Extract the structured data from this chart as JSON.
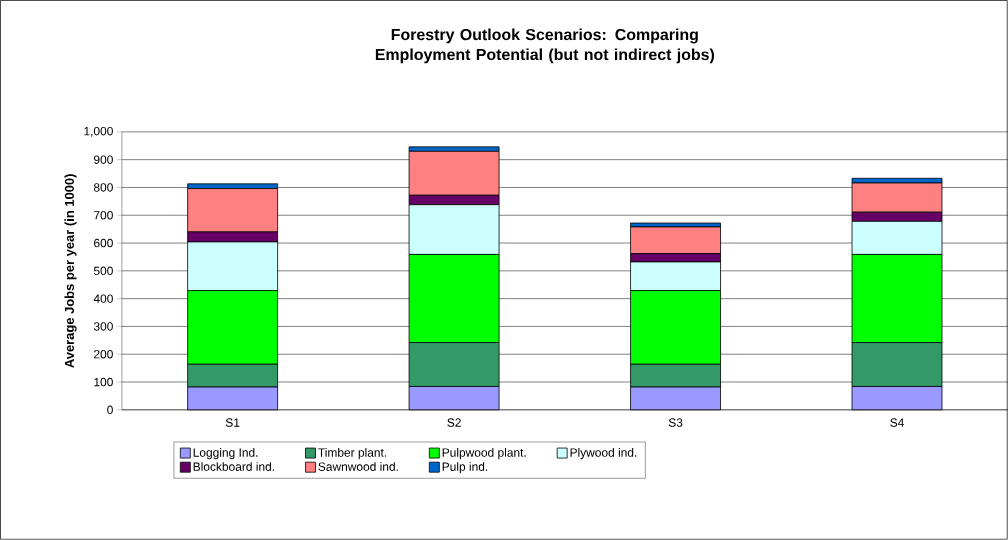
{
  "chart_data": {
    "type": "bar",
    "stacked": true,
    "title": "Forestry Outlook Scenarios:  Comparing Employment Potential (but not indirect jobs)",
    "ylabel": "Average Jobs per year (in 1000)",
    "categories": [
      "S1",
      "S2",
      "S3",
      "S4"
    ],
    "series": [
      {
        "name": "Logging Ind.",
        "color": "#9999ff",
        "values": [
          82,
          84,
          82,
          84
        ]
      },
      {
        "name": "Timber plant.",
        "color": "#339966",
        "values": [
          82,
          158,
          82,
          158
        ]
      },
      {
        "name": "Pulpwood plant.",
        "color": "#00ff00",
        "values": [
          265,
          317,
          265,
          317
        ]
      },
      {
        "name": "Plywood ind.",
        "color": "#ccffff",
        "values": [
          175,
          179,
          103,
          119
        ]
      },
      {
        "name": "Blockboard ind.",
        "color": "#660066",
        "values": [
          36,
          34,
          30,
          33
        ]
      },
      {
        "name": "Sawnwood ind.",
        "color": "#ff8080",
        "values": [
          156,
          158,
          96,
          105
        ]
      },
      {
        "name": "Pulp ind.",
        "color": "#0066cc",
        "values": [
          17,
          16,
          14,
          17
        ]
      }
    ],
    "ylim": [
      0,
      1000
    ],
    "yticks": [
      0,
      100,
      200,
      300,
      400,
      500,
      600,
      700,
      800,
      900,
      {
        "value": 1000,
        "label": "1,000"
      }
    ],
    "grid": "y",
    "legend": "bottom"
  }
}
